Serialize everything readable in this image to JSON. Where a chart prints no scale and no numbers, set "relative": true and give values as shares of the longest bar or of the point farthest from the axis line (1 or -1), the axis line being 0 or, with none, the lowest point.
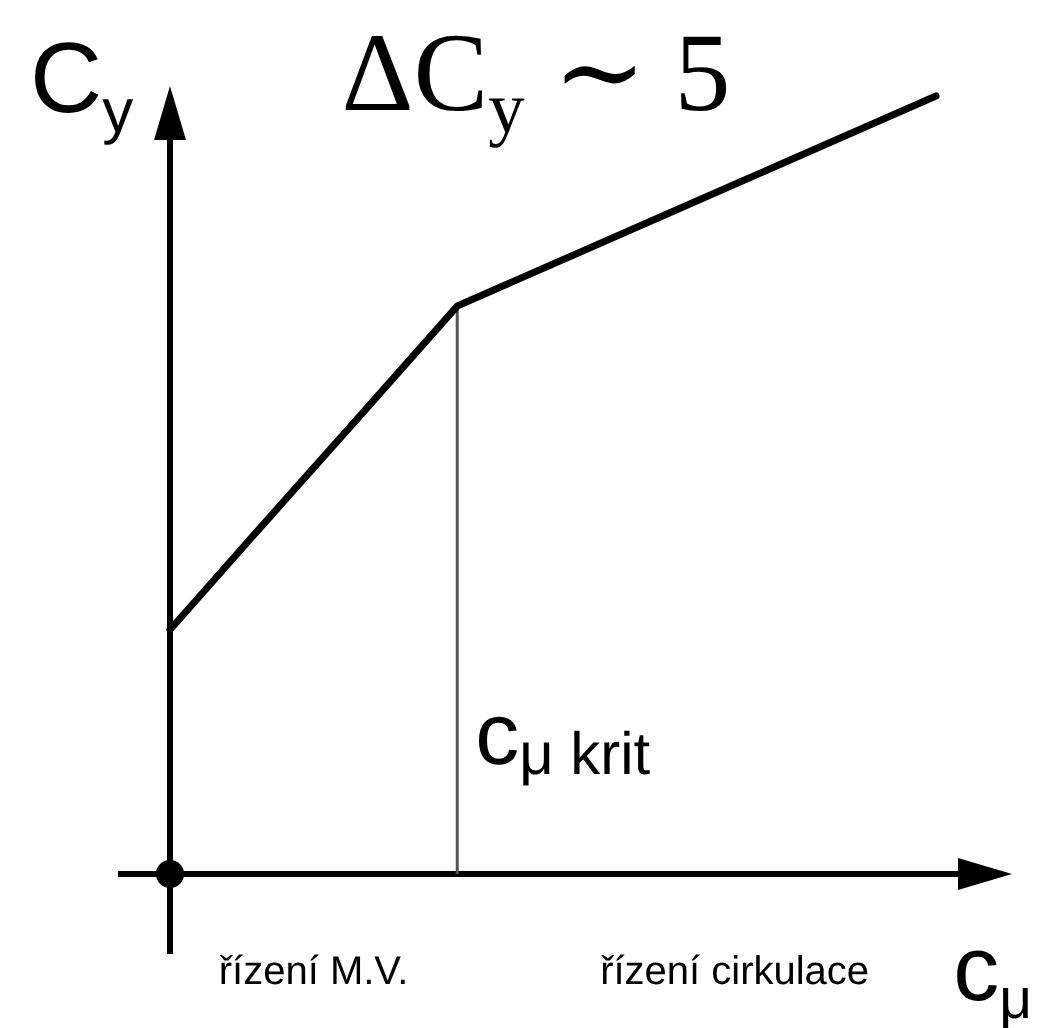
{
  "chart_data": {
    "type": "line",
    "title": "ΔC$_{y}$ ∼ 5",
    "xlabel": "c$_{μ}$",
    "ylabel": "C$_{y}$",
    "relative": true,
    "categories": [
      null,
      null,
      null,
      null,
      null,
      null,
      null,
      null,
      null
    ],
    "values": [
      0.314,
      0.453,
      0.591,
      0.73,
      0.784,
      0.838,
      0.892,
      0.946,
      1
    ],
    "color": "#000000",
    "annotations": [
      "c$_{μ krit}$",
      "řízení M.V.",
      "řízení cirkulace"
    ]
  }
}
